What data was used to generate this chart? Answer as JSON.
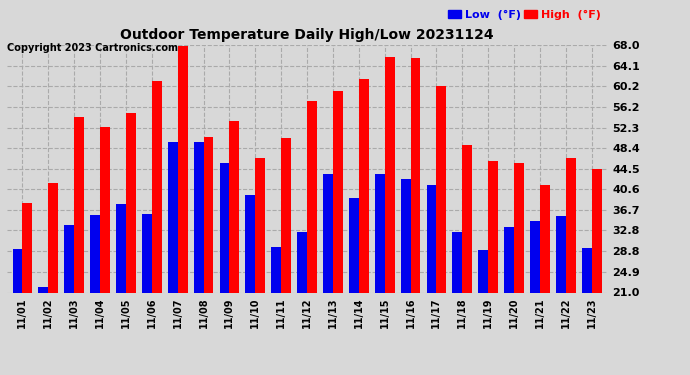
{
  "title": "Outdoor Temperature Daily High/Low 20231124",
  "copyright": "Copyright 2023 Cartronics.com",
  "legend_low": "Low  (°F)",
  "legend_high": "High  (°F)",
  "dates": [
    "11/01",
    "11/02",
    "11/03",
    "11/04",
    "11/05",
    "11/06",
    "11/07",
    "11/08",
    "11/09",
    "11/10",
    "11/11",
    "11/12",
    "11/13",
    "11/14",
    "11/15",
    "11/16",
    "11/17",
    "11/18",
    "11/19",
    "11/20",
    "11/21",
    "11/22",
    "11/23"
  ],
  "highs": [
    38.0,
    41.8,
    54.3,
    52.5,
    55.0,
    61.2,
    67.8,
    50.5,
    53.5,
    46.6,
    50.4,
    57.4,
    59.3,
    61.5,
    65.8,
    65.5,
    60.2,
    49.0,
    46.0,
    45.5,
    41.5,
    46.5,
    44.5
  ],
  "lows": [
    29.3,
    22.0,
    33.8,
    35.7,
    37.8,
    36.0,
    49.5,
    49.5,
    45.5,
    39.5,
    29.7,
    32.5,
    43.5,
    39.0,
    43.5,
    42.5,
    41.5,
    32.5,
    29.0,
    33.5,
    34.5,
    35.5,
    29.5
  ],
  "high_color": "#ff0000",
  "low_color": "#0000ee",
  "bg_color": "#d8d8d8",
  "plot_bg": "#d8d8d8",
  "grid_color": "#aaaaaa",
  "yticks": [
    21.0,
    24.9,
    28.8,
    32.8,
    36.7,
    40.6,
    44.5,
    48.4,
    52.3,
    56.2,
    60.2,
    64.1,
    68.0
  ],
  "ymin": 21.0,
  "ymax": 68.0,
  "bar_width": 0.38
}
